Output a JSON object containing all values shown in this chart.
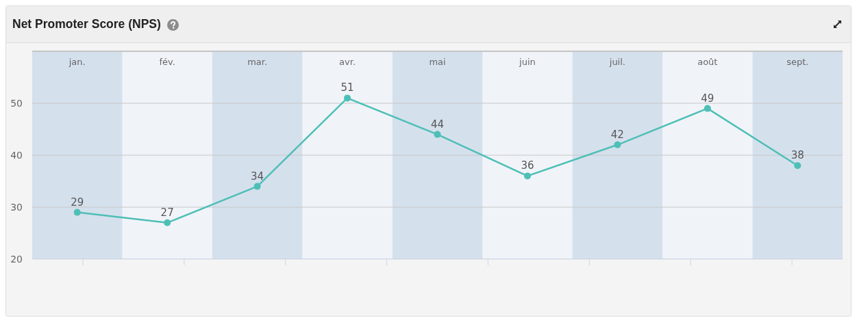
{
  "chart_data": {
    "type": "line",
    "title": "Net Promoter Score (NPS)",
    "categories": [
      "jan.",
      "fév.",
      "mar.",
      "avr.",
      "mai",
      "juin",
      "juil.",
      "août",
      "sept."
    ],
    "series": [
      {
        "color": "#4ebfb6",
        "values": [
          29,
          27,
          34,
          51,
          44,
          36,
          42,
          49,
          38
        ]
      }
    ],
    "ylim": [
      20,
      60
    ],
    "yticks": [
      20,
      30,
      40,
      50
    ],
    "grid": "y",
    "marker": "circle",
    "data_labels": true,
    "bands": [
      {
        "axis": "x",
        "from": "jan.",
        "to": "jan.",
        "color": "#d5e0ed"
      },
      {
        "axis": "x",
        "from": "mar.",
        "to": "mar.",
        "color": "#d5e0ed"
      },
      {
        "axis": "x",
        "from": "mai",
        "to": "mai",
        "color": "#d5e0ed"
      },
      {
        "axis": "x",
        "from": "juil.",
        "to": "juil.",
        "color": "#d5e0ed"
      },
      {
        "axis": "x",
        "from": "sept.",
        "to": "sept.",
        "color": "#d5e0ed"
      }
    ]
  }
}
